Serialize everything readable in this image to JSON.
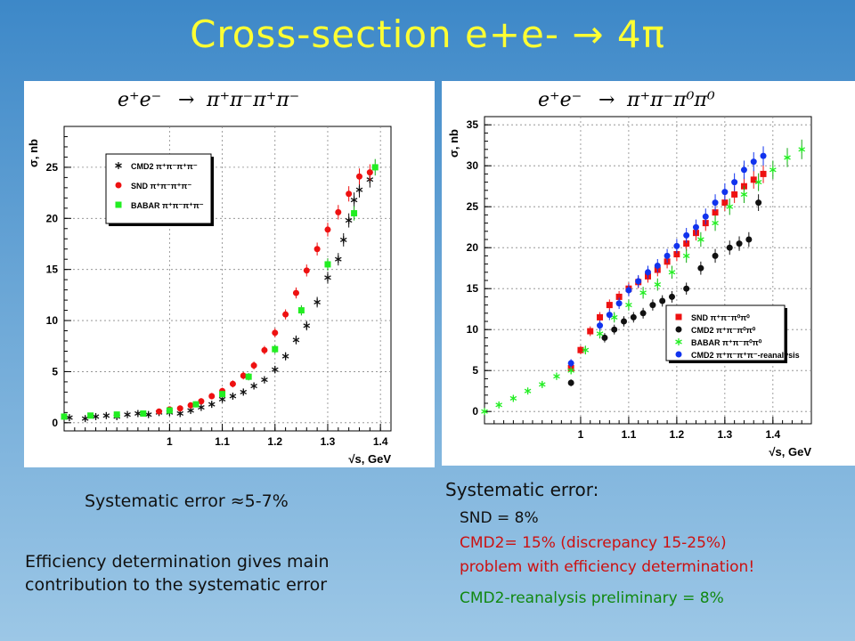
{
  "slide": {
    "title": "Cross-section e+e-  → 4π"
  },
  "left_text": {
    "systematic": "Systematic error ≈5-7%",
    "efficiency_line1": "Efficiency determination gives main",
    "efficiency_line2": "contribution to the systematic error"
  },
  "right_text": {
    "heading": "Systematic error:",
    "snd": "SND = 8%",
    "cmd2": "CMD2= 15% (discrepancy 15-25%)",
    "problem": "problem with efficiency determination!",
    "reanalysis": "CMD2-reanalysis preliminary = 8%"
  },
  "colors": {
    "title": "#ffff33",
    "cmd2_text": "#cc1111",
    "reanalysis_text": "#118811",
    "series_red": "#ee1111",
    "series_green": "#22ee22",
    "series_black": "#111111",
    "series_blue": "#1133ee"
  },
  "chart_data": [
    {
      "type": "scatter",
      "title_parts": {
        "lhs": "e⁺e⁻",
        "arrow": "→",
        "rhs": "π⁺π⁻π⁺π⁻"
      },
      "ylabel": "σ, nb",
      "xlabel": "√s, GeV",
      "xlim": [
        0.8,
        1.42
      ],
      "ylim": [
        -0.8,
        29
      ],
      "xticks": [
        1,
        1.1,
        1.2,
        1.3,
        1.4
      ],
      "xtick_labels": [
        "1",
        "1.1",
        "1.2",
        "1.3",
        "1.4"
      ],
      "yticks": [
        0,
        5,
        10,
        15,
        20,
        25
      ],
      "ytick_labels": [
        "0",
        "5",
        "10",
        "15",
        "20",
        "25"
      ],
      "grid": true,
      "legend_position": "top-left",
      "series": [
        {
          "name": "CMD2 π⁺π⁻π⁺π⁻",
          "marker": "star",
          "color": "#111111",
          "x": [
            0.81,
            0.84,
            0.86,
            0.88,
            0.9,
            0.92,
            0.94,
            0.96,
            0.98,
            1.0,
            1.02,
            1.04,
            1.06,
            1.08,
            1.1,
            1.12,
            1.14,
            1.16,
            1.18,
            1.2,
            1.22,
            1.24,
            1.26,
            1.28,
            1.3,
            1.32,
            1.33,
            1.34,
            1.35,
            1.36,
            1.38
          ],
          "y": [
            0.5,
            0.4,
            0.6,
            0.7,
            0.6,
            0.8,
            0.9,
            0.8,
            1.0,
            1.0,
            0.9,
            1.2,
            1.5,
            1.8,
            2.3,
            2.6,
            3.0,
            3.6,
            4.2,
            5.2,
            6.5,
            8.1,
            9.5,
            11.8,
            14.2,
            16.0,
            17.9,
            19.8,
            21.8,
            22.8,
            23.8
          ]
        },
        {
          "name": "SND π⁺π⁻π⁺π⁻",
          "marker": "circle",
          "color": "#ee1111",
          "x": [
            0.98,
            1.0,
            1.02,
            1.04,
            1.06,
            1.08,
            1.1,
            1.12,
            1.14,
            1.16,
            1.18,
            1.2,
            1.22,
            1.24,
            1.26,
            1.28,
            1.3,
            1.32,
            1.34,
            1.36,
            1.38
          ],
          "y": [
            1.1,
            1.3,
            1.4,
            1.7,
            2.1,
            2.6,
            3.1,
            3.8,
            4.6,
            5.6,
            7.1,
            8.8,
            10.6,
            12.7,
            14.9,
            17.0,
            18.9,
            20.6,
            22.4,
            24.1,
            24.5
          ]
        },
        {
          "name": "BABAR π⁺π⁻π⁺π⁻",
          "marker": "square",
          "color": "#22ee22",
          "x": [
            0.8,
            0.85,
            0.9,
            0.95,
            1.0,
            1.05,
            1.1,
            1.15,
            1.2,
            1.25,
            1.3,
            1.35,
            1.39
          ],
          "y": [
            0.6,
            0.7,
            0.8,
            0.9,
            1.2,
            1.8,
            2.8,
            4.5,
            7.2,
            11.0,
            15.5,
            20.5,
            25.0
          ]
        }
      ]
    },
    {
      "type": "scatter",
      "title_parts": {
        "lhs": "e⁺e⁻",
        "arrow": "→",
        "rhs": "π⁺π⁻π⁰π⁰"
      },
      "ylabel": "σ, nb",
      "xlabel": "√s, GeV",
      "xlim": [
        0.8,
        1.48
      ],
      "ylim": [
        -1.5,
        36
      ],
      "xticks": [
        1,
        1.1,
        1.2,
        1.3,
        1.4
      ],
      "xtick_labels": [
        "1",
        "1.1",
        "1.2",
        "1.3",
        "1.4"
      ],
      "yticks": [
        0,
        5,
        10,
        15,
        20,
        25,
        30,
        35
      ],
      "ytick_labels": [
        "0",
        "5",
        "10",
        "15",
        "20",
        "25",
        "30",
        "35"
      ],
      "grid": true,
      "legend_position": "bottom-right",
      "series": [
        {
          "name": "SND π⁺π⁻π⁰π⁰",
          "marker": "square",
          "color": "#ee1111",
          "x": [
            0.98,
            1.0,
            1.02,
            1.04,
            1.06,
            1.08,
            1.1,
            1.12,
            1.14,
            1.16,
            1.18,
            1.2,
            1.22,
            1.24,
            1.26,
            1.28,
            1.3,
            1.32,
            1.34,
            1.36,
            1.38
          ],
          "y": [
            5.3,
            7.5,
            9.8,
            11.5,
            13.0,
            14.0,
            15.0,
            15.8,
            16.5,
            17.3,
            18.3,
            19.2,
            20.5,
            21.8,
            23.0,
            24.3,
            25.5,
            26.5,
            27.5,
            28.3,
            29.0
          ]
        },
        {
          "name": "CMD2 π⁺π⁻π⁰π⁰",
          "marker": "circle",
          "color": "#111111",
          "x": [
            0.98,
            1.05,
            1.07,
            1.09,
            1.11,
            1.13,
            1.15,
            1.17,
            1.19,
            1.22,
            1.25,
            1.28,
            1.31,
            1.33,
            1.35,
            1.37
          ],
          "y": [
            3.5,
            9.0,
            10.0,
            11.0,
            11.5,
            12.0,
            13.0,
            13.5,
            14.0,
            15.0,
            17.5,
            19.0,
            20.0,
            20.5,
            21.0,
            25.5
          ]
        },
        {
          "name": "BABAR π⁺π⁻π⁰π⁰",
          "marker": "star",
          "color": "#22ee22",
          "x": [
            0.8,
            0.83,
            0.86,
            0.89,
            0.92,
            0.95,
            0.98,
            1.01,
            1.04,
            1.07,
            1.1,
            1.13,
            1.16,
            1.19,
            1.22,
            1.25,
            1.28,
            1.31,
            1.34,
            1.37,
            1.4,
            1.43,
            1.46
          ],
          "y": [
            0.0,
            0.8,
            1.6,
            2.5,
            3.3,
            4.3,
            5.0,
            7.5,
            9.5,
            11.5,
            13.0,
            14.5,
            15.5,
            17.0,
            19.0,
            21.0,
            23.0,
            25.0,
            26.5,
            28.0,
            29.5,
            31.0,
            32.0
          ]
        },
        {
          "name": "CMD2 π⁺π⁻π⁺π⁻-reanalysis",
          "marker": "circle",
          "color": "#1133ee",
          "x": [
            0.98,
            1.04,
            1.06,
            1.08,
            1.1,
            1.12,
            1.14,
            1.16,
            1.18,
            1.2,
            1.22,
            1.24,
            1.26,
            1.28,
            1.3,
            1.32,
            1.34,
            1.36,
            1.38
          ],
          "y": [
            5.9,
            10.5,
            11.8,
            13.2,
            14.8,
            15.9,
            17.0,
            17.8,
            19.0,
            20.2,
            21.5,
            22.5,
            23.8,
            25.5,
            26.8,
            28.0,
            29.5,
            30.5,
            31.2
          ]
        }
      ]
    }
  ]
}
